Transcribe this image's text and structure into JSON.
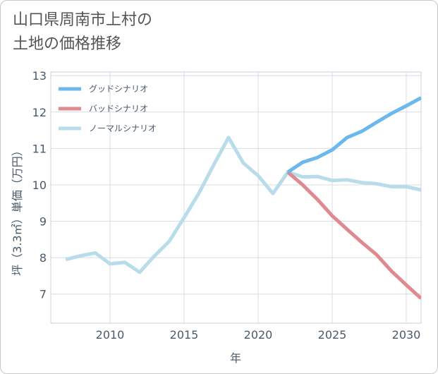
{
  "header": {
    "title_line1": "山口県周南市上村の",
    "title_line2": "土地の価格推移"
  },
  "chart_data": {
    "type": "line",
    "xlabel": "年",
    "ylabel": "坪（3.3㎡）単価（万円）",
    "xlim": [
      2006,
      2031
    ],
    "ylim": [
      6.2,
      13.1
    ],
    "xticks": [
      2010,
      2015,
      2020,
      2025,
      2030
    ],
    "yticks": [
      7,
      8,
      9,
      10,
      11,
      12,
      13
    ],
    "grid": true,
    "legend_position": "top-left",
    "series": [
      {
        "name": "グッドシナリオ",
        "color": "#6ab8ec",
        "x": [
          2022,
          2023,
          2024,
          2025,
          2026,
          2027,
          2028,
          2029,
          2030,
          2031
        ],
        "values": [
          10.35,
          10.62,
          10.75,
          10.96,
          11.3,
          11.47,
          11.72,
          11.96,
          12.17,
          12.39
        ]
      },
      {
        "name": "バッドシナリオ",
        "color": "#e0898f",
        "x": [
          2022,
          2023,
          2024,
          2025,
          2026,
          2027,
          2028,
          2029,
          2030,
          2031
        ],
        "values": [
          10.35,
          10.0,
          9.6,
          9.15,
          8.78,
          8.42,
          8.08,
          7.63,
          7.25,
          6.88
        ]
      },
      {
        "name": "ノーマルシナリオ",
        "color": "#b9dcea",
        "x": [
          2007,
          2008,
          2009,
          2010,
          2011,
          2012,
          2013,
          2014,
          2015,
          2016,
          2017,
          2018,
          2019,
          2020,
          2021,
          2022,
          2023,
          2024,
          2025,
          2026,
          2027,
          2028,
          2029,
          2030,
          2031
        ],
        "values": [
          7.95,
          8.05,
          8.13,
          7.83,
          7.87,
          7.6,
          8.05,
          8.45,
          9.1,
          9.77,
          10.55,
          11.3,
          10.6,
          10.25,
          9.76,
          10.35,
          10.22,
          10.23,
          10.12,
          10.14,
          10.06,
          10.03,
          9.95,
          9.95,
          9.86
        ]
      }
    ]
  }
}
